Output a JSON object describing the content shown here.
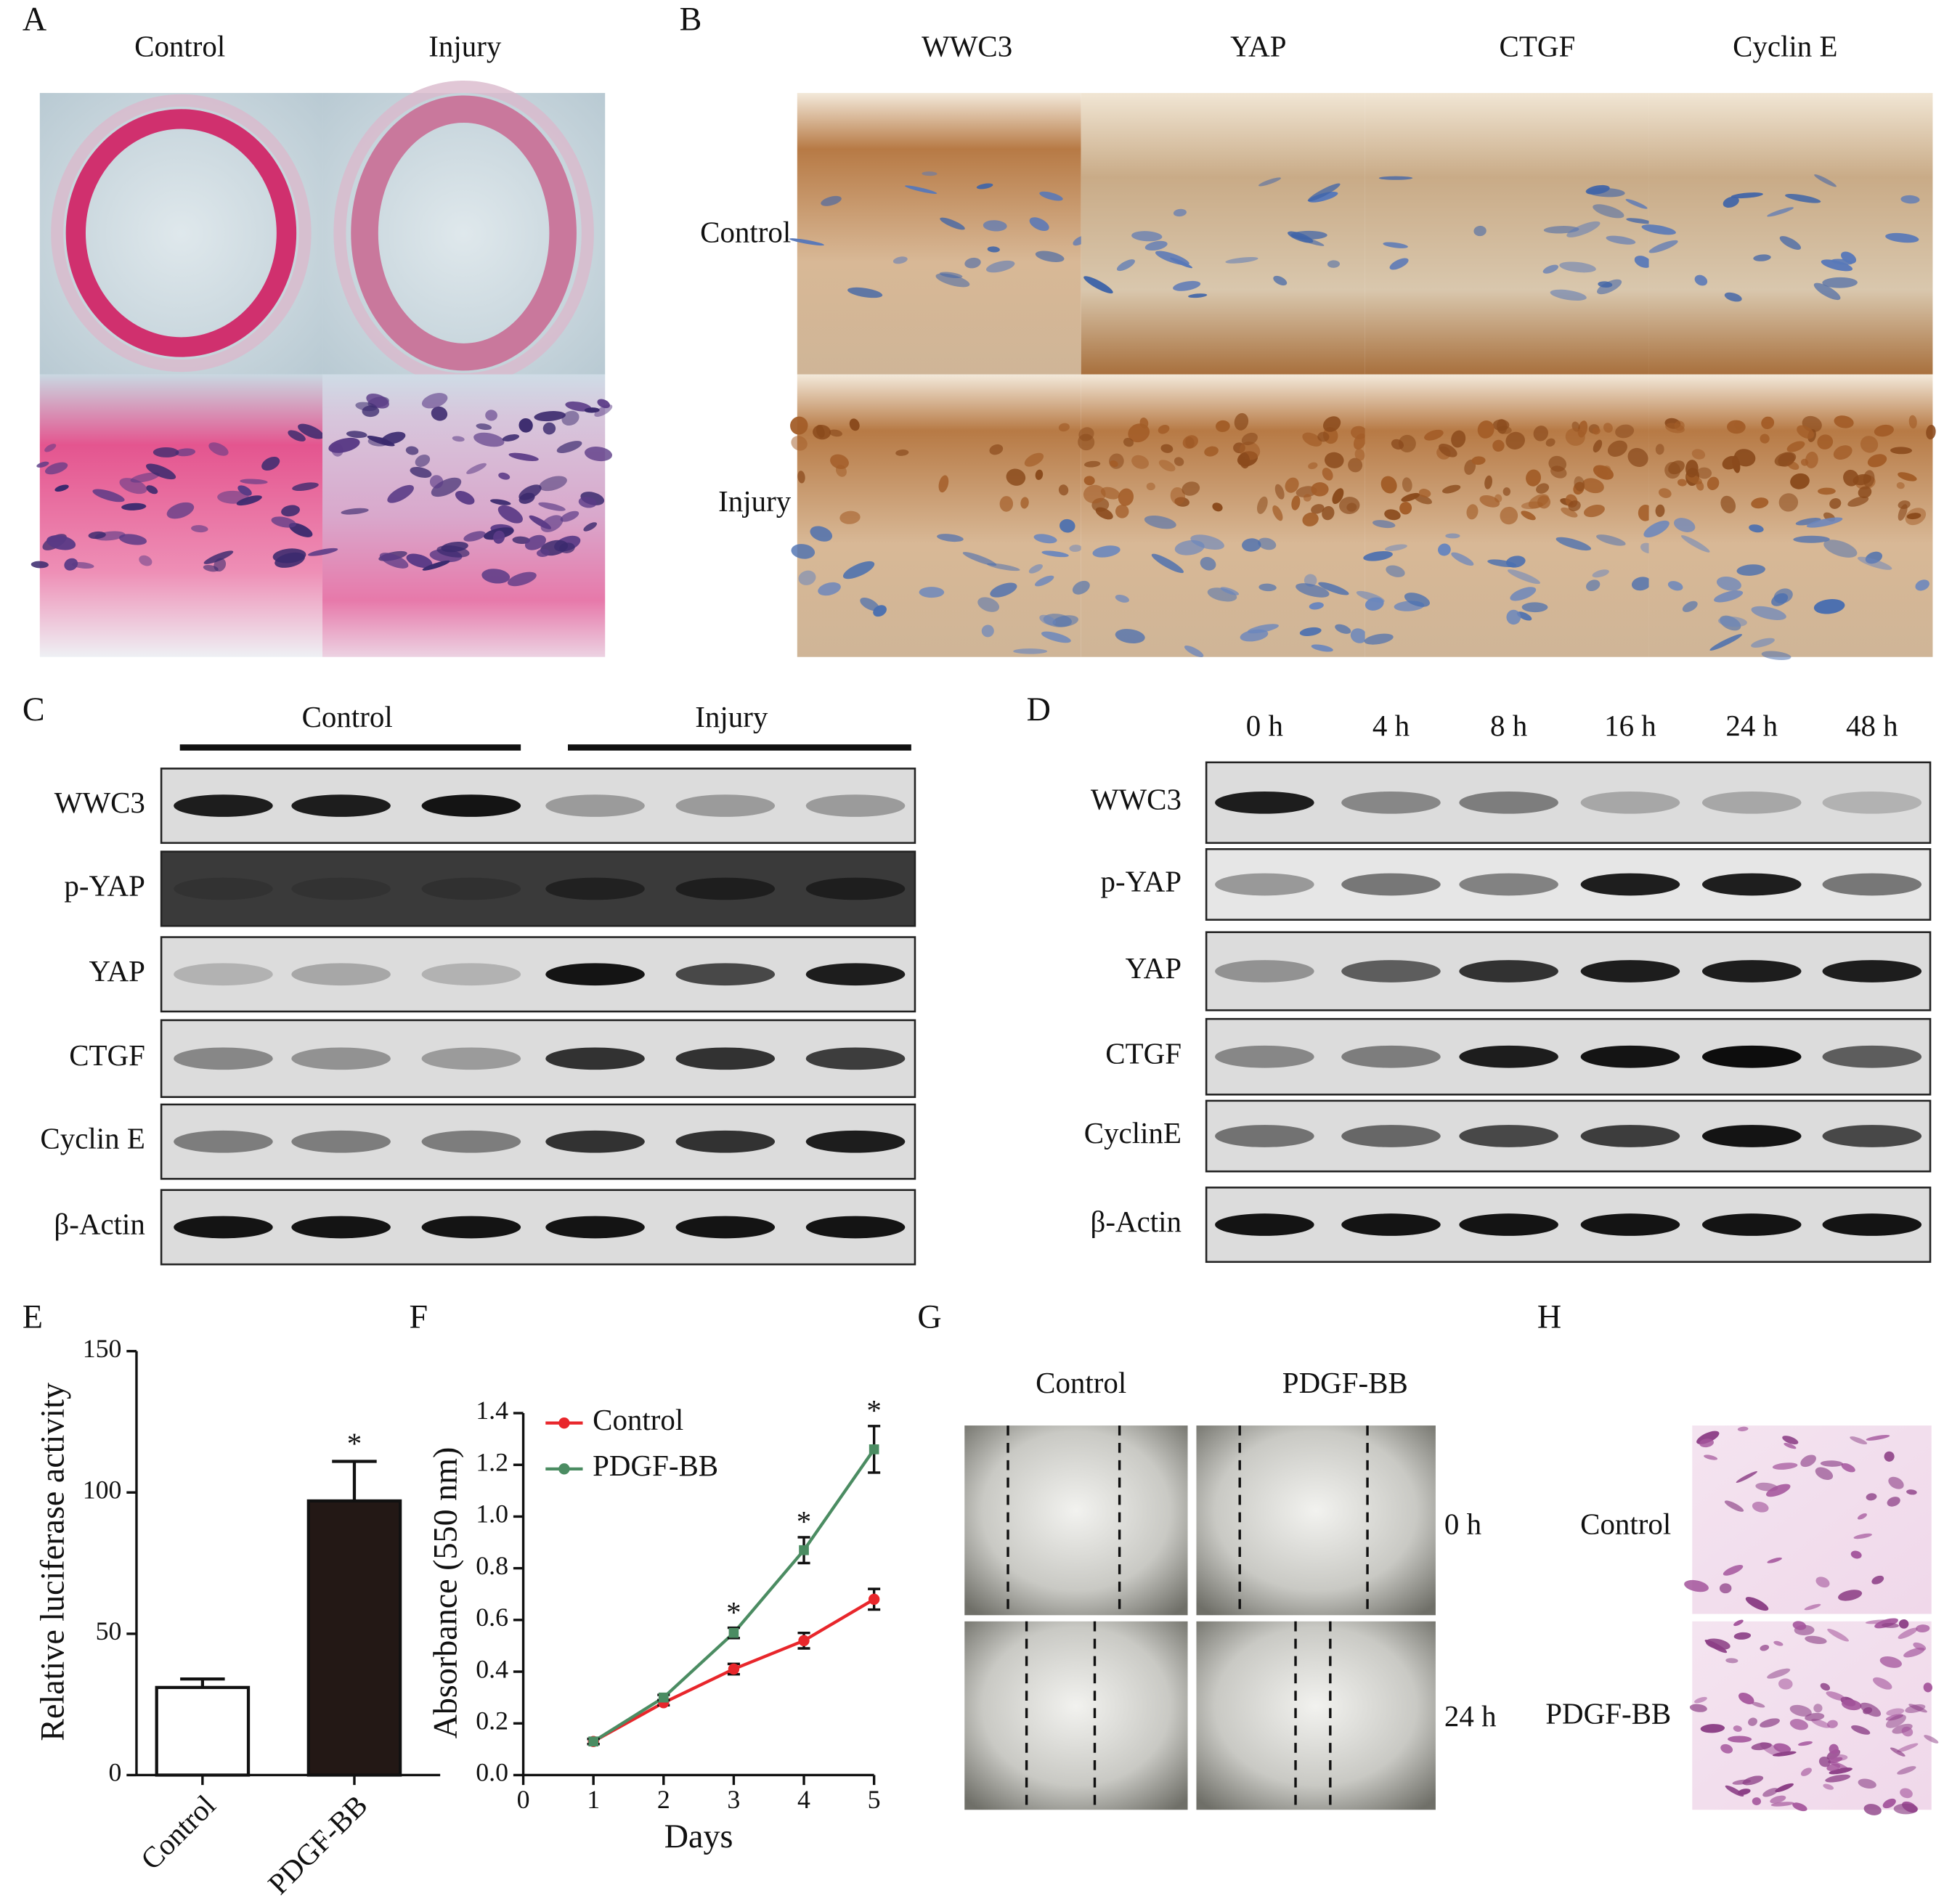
{
  "panel_a": {
    "label": "A",
    "columns": [
      "Control",
      "Injury"
    ]
  },
  "panel_b": {
    "label": "B",
    "columns": [
      "WWC3",
      "YAP",
      "CTGF",
      "Cyclin E"
    ],
    "rows": [
      "Control",
      "Injury"
    ]
  },
  "panel_c": {
    "label": "C",
    "groups": [
      "Control",
      "Injury"
    ],
    "rows": [
      "WWC3",
      "p-YAP",
      "YAP",
      "CTGF",
      "Cyclin E",
      "β-Actin"
    ]
  },
  "panel_d": {
    "label": "D",
    "columns": [
      "0 h",
      "4 h",
      "8 h",
      "16 h",
      "24 h",
      "48 h"
    ],
    "rows": [
      "WWC3",
      "p-YAP",
      "YAP",
      "CTGF",
      "CyclinE",
      "β-Actin"
    ]
  },
  "panel_g": {
    "label": "G",
    "columns": [
      "Control",
      "PDGF-BB"
    ],
    "rows": [
      "0 h",
      "24 h"
    ]
  },
  "panel_h": {
    "label": "H",
    "rows": [
      "Control",
      "PDGF-BB"
    ]
  },
  "chart_data": [
    {
      "type": "bar",
      "panel_label": "E",
      "ylabel": "Relative luciferase activity",
      "categories": [
        "Control",
        "PDGF-BB"
      ],
      "values": [
        31,
        97
      ],
      "errors": [
        3,
        14
      ],
      "colors": [
        "#ffffff",
        "#231815"
      ],
      "annotations": [
        {
          "category": "PDGF-BB",
          "text": "*"
        }
      ],
      "ylim": [
        0,
        150
      ],
      "yticks": [
        0,
        50,
        100,
        150
      ]
    },
    {
      "type": "line",
      "panel_label": "F",
      "xlabel": "Days",
      "ylabel": "Absorbance (550 nm)",
      "x": [
        1,
        2,
        3,
        4,
        5
      ],
      "series": [
        {
          "name": "Control",
          "color": "#e8262b",
          "values": [
            0.13,
            0.28,
            0.41,
            0.52,
            0.68
          ],
          "errors": [
            0.01,
            0.01,
            0.02,
            0.03,
            0.04
          ]
        },
        {
          "name": "PDGF-BB",
          "color": "#4b8c62",
          "values": [
            0.13,
            0.3,
            0.55,
            0.87,
            1.26
          ],
          "errors": [
            0.01,
            0.01,
            0.02,
            0.05,
            0.09
          ]
        }
      ],
      "annotations": [
        {
          "x": 3,
          "text": "*"
        },
        {
          "x": 4,
          "text": "*"
        },
        {
          "x": 5,
          "text": "*"
        }
      ],
      "xlim": [
        0,
        5
      ],
      "xticks": [
        0,
        1,
        2,
        3,
        4,
        5
      ],
      "ylim": [
        0,
        1.4
      ],
      "yticks": [
        {
          "value": 0,
          "label": "0.0"
        },
        0.2,
        0.4,
        0.6,
        0.8,
        {
          "value": 1,
          "label": "1.0"
        },
        1.2,
        1.4
      ],
      "legend": "upper left"
    }
  ]
}
